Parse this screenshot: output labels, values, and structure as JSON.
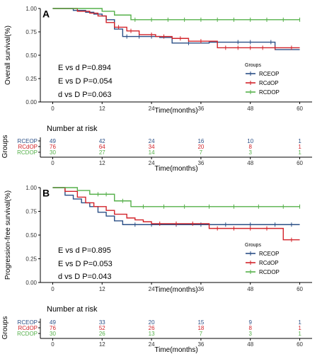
{
  "chart_data": [
    {
      "panel_label": "A",
      "type": "line",
      "step": true,
      "ylabel": "Overall survival(%)",
      "xlabel": "Time(months)",
      "xlim": [
        -3,
        63
      ],
      "ylim": [
        0,
        1
      ],
      "xticks": [
        0,
        12,
        24,
        36,
        48,
        60
      ],
      "yticks": [
        0,
        0.25,
        0.5,
        0.75,
        1
      ],
      "ytick_labels": [
        "0.00",
        "0.25",
        "0.50",
        "0.75",
        "1.00"
      ],
      "grid": false,
      "legend": {
        "title": "Groups",
        "placement": "right"
      },
      "stats": [
        "E vs d P=0.894",
        "E vs D P=0.054",
        "d vs D P=0.063"
      ],
      "series": [
        {
          "name": "RCEOP",
          "color": "#2b4f86",
          "x": [
            0,
            5,
            8,
            10,
            12,
            13,
            15,
            17,
            26,
            29,
            38,
            54,
            60
          ],
          "y": [
            1,
            0.98,
            0.96,
            0.94,
            0.92,
            0.88,
            0.78,
            0.7,
            0.69,
            0.63,
            0.64,
            0.56,
            0.56
          ],
          "censors": [
            [
              18,
              0.7
            ],
            [
              21,
              0.7
            ],
            [
              24,
              0.7
            ],
            [
              33,
              0.63
            ],
            [
              45,
              0.64
            ],
            [
              48,
              0.64
            ],
            [
              53,
              0.64
            ]
          ]
        },
        {
          "name": "RCdOP",
          "color": "#d2232a",
          "x": [
            0,
            6,
            9,
            11,
            13,
            15,
            18,
            21,
            25,
            29,
            33,
            40,
            60
          ],
          "y": [
            1,
            0.97,
            0.95,
            0.92,
            0.85,
            0.8,
            0.76,
            0.72,
            0.7,
            0.68,
            0.65,
            0.58,
            0.58
          ],
          "censors": [
            [
              16,
              0.8
            ],
            [
              19,
              0.76
            ],
            [
              24,
              0.72
            ],
            [
              27,
              0.7
            ],
            [
              31,
              0.68
            ],
            [
              36,
              0.65
            ],
            [
              42,
              0.58
            ],
            [
              45,
              0.58
            ],
            [
              48,
              0.58
            ],
            [
              51,
              0.58
            ],
            [
              54,
              0.58
            ],
            [
              58,
              0.58
            ]
          ]
        },
        {
          "name": "RCDOP",
          "color": "#55b04a",
          "x": [
            0,
            12,
            15,
            19,
            60
          ],
          "y": [
            1,
            0.97,
            0.93,
            0.88,
            0.88
          ],
          "censors": [
            [
              20,
              0.88
            ],
            [
              24,
              0.88
            ],
            [
              28,
              0.88
            ],
            [
              32,
              0.88
            ],
            [
              36,
              0.88
            ],
            [
              40,
              0.88
            ],
            [
              44,
              0.88
            ],
            [
              48,
              0.88
            ],
            [
              52,
              0.88
            ],
            [
              56,
              0.88
            ],
            [
              60,
              0.88
            ]
          ]
        }
      ],
      "risk_table": {
        "title": "Number at risk",
        "ylabel": "Groups",
        "xlabel": "Time(months)",
        "times": [
          0,
          12,
          24,
          36,
          48,
          60
        ],
        "rows": [
          {
            "name": "RCEOP",
            "color": "#2b4f86",
            "values": [
              "49",
              "42",
              "24",
              "16",
              "10",
              "1"
            ]
          },
          {
            "name": "RCdOP",
            "color": "#d2232a",
            "values": [
              "76",
              "64",
              "34",
              "20",
              "8",
              "1"
            ]
          },
          {
            "name": "RCDOP",
            "color": "#55b04a",
            "values": [
              "30",
              "27",
              "14",
              "7",
              "3",
              "1"
            ]
          }
        ]
      }
    },
    {
      "panel_label": "B",
      "type": "line",
      "step": true,
      "ylabel": "Progression-free survival(%)",
      "xlabel": "Time(months)",
      "xlim": [
        -3,
        63
      ],
      "ylim": [
        0,
        1
      ],
      "xticks": [
        0,
        12,
        24,
        36,
        48,
        60
      ],
      "yticks": [
        0,
        0.25,
        0.5,
        0.75,
        1
      ],
      "ytick_labels": [
        "0.00",
        "0.25",
        "0.50",
        "0.75",
        "1.00"
      ],
      "grid": false,
      "legend": {
        "title": "Groups",
        "placement": "right"
      },
      "stats": [
        "E vs d P=0.895",
        "E vs D P=0.053",
        "d vs D P=0.043"
      ],
      "series": [
        {
          "name": "RCEOP",
          "color": "#2b4f86",
          "x": [
            0,
            3,
            5,
            7,
            9,
            11,
            13,
            15,
            17,
            60
          ],
          "y": [
            1,
            0.92,
            0.88,
            0.84,
            0.8,
            0.74,
            0.7,
            0.65,
            0.61,
            0.61
          ],
          "censors": [
            [
              20,
              0.61
            ],
            [
              24,
              0.61
            ],
            [
              30,
              0.61
            ],
            [
              36,
              0.61
            ],
            [
              42,
              0.61
            ],
            [
              48,
              0.61
            ],
            [
              54,
              0.61
            ],
            [
              58,
              0.61
            ]
          ]
        },
        {
          "name": "RCdOP",
          "color": "#d2232a",
          "x": [
            0,
            3,
            6,
            8,
            10,
            13,
            15,
            18,
            20,
            22,
            24,
            38,
            56,
            60
          ],
          "y": [
            1,
            0.96,
            0.9,
            0.84,
            0.8,
            0.76,
            0.72,
            0.68,
            0.66,
            0.64,
            0.62,
            0.57,
            0.45,
            0.45
          ],
          "censors": [
            [
              26,
              0.62
            ],
            [
              30,
              0.62
            ],
            [
              34,
              0.62
            ],
            [
              40,
              0.57
            ],
            [
              44,
              0.57
            ],
            [
              48,
              0.57
            ],
            [
              52,
              0.57
            ],
            [
              58,
              0.45
            ]
          ]
        },
        {
          "name": "RCDOP",
          "color": "#55b04a",
          "x": [
            0,
            6,
            9,
            15,
            19,
            60
          ],
          "y": [
            1,
            0.97,
            0.93,
            0.86,
            0.8,
            0.8
          ],
          "censors": [
            [
              11,
              0.93
            ],
            [
              13,
              0.93
            ],
            [
              17,
              0.86
            ],
            [
              22,
              0.8
            ],
            [
              27,
              0.8
            ],
            [
              32,
              0.8
            ],
            [
              38,
              0.8
            ],
            [
              44,
              0.8
            ],
            [
              50,
              0.8
            ],
            [
              56,
              0.8
            ],
            [
              60,
              0.8
            ]
          ]
        }
      ],
      "risk_table": {
        "title": "Number at risk",
        "ylabel": "Groups",
        "xlabel": "Time(months)",
        "times": [
          0,
          12,
          24,
          36,
          48,
          60
        ],
        "rows": [
          {
            "name": "RCEOP",
            "color": "#2b4f86",
            "values": [
              "49",
              "33",
              "20",
              "15",
              "9",
              "1"
            ]
          },
          {
            "name": "RCdOP",
            "color": "#d2232a",
            "values": [
              "76",
              "52",
              "26",
              "18",
              "8",
              "1"
            ]
          },
          {
            "name": "RCDOP",
            "color": "#55b04a",
            "values": [
              "30",
              "26",
              "13",
              "7",
              "3",
              "1"
            ]
          }
        ]
      }
    }
  ]
}
